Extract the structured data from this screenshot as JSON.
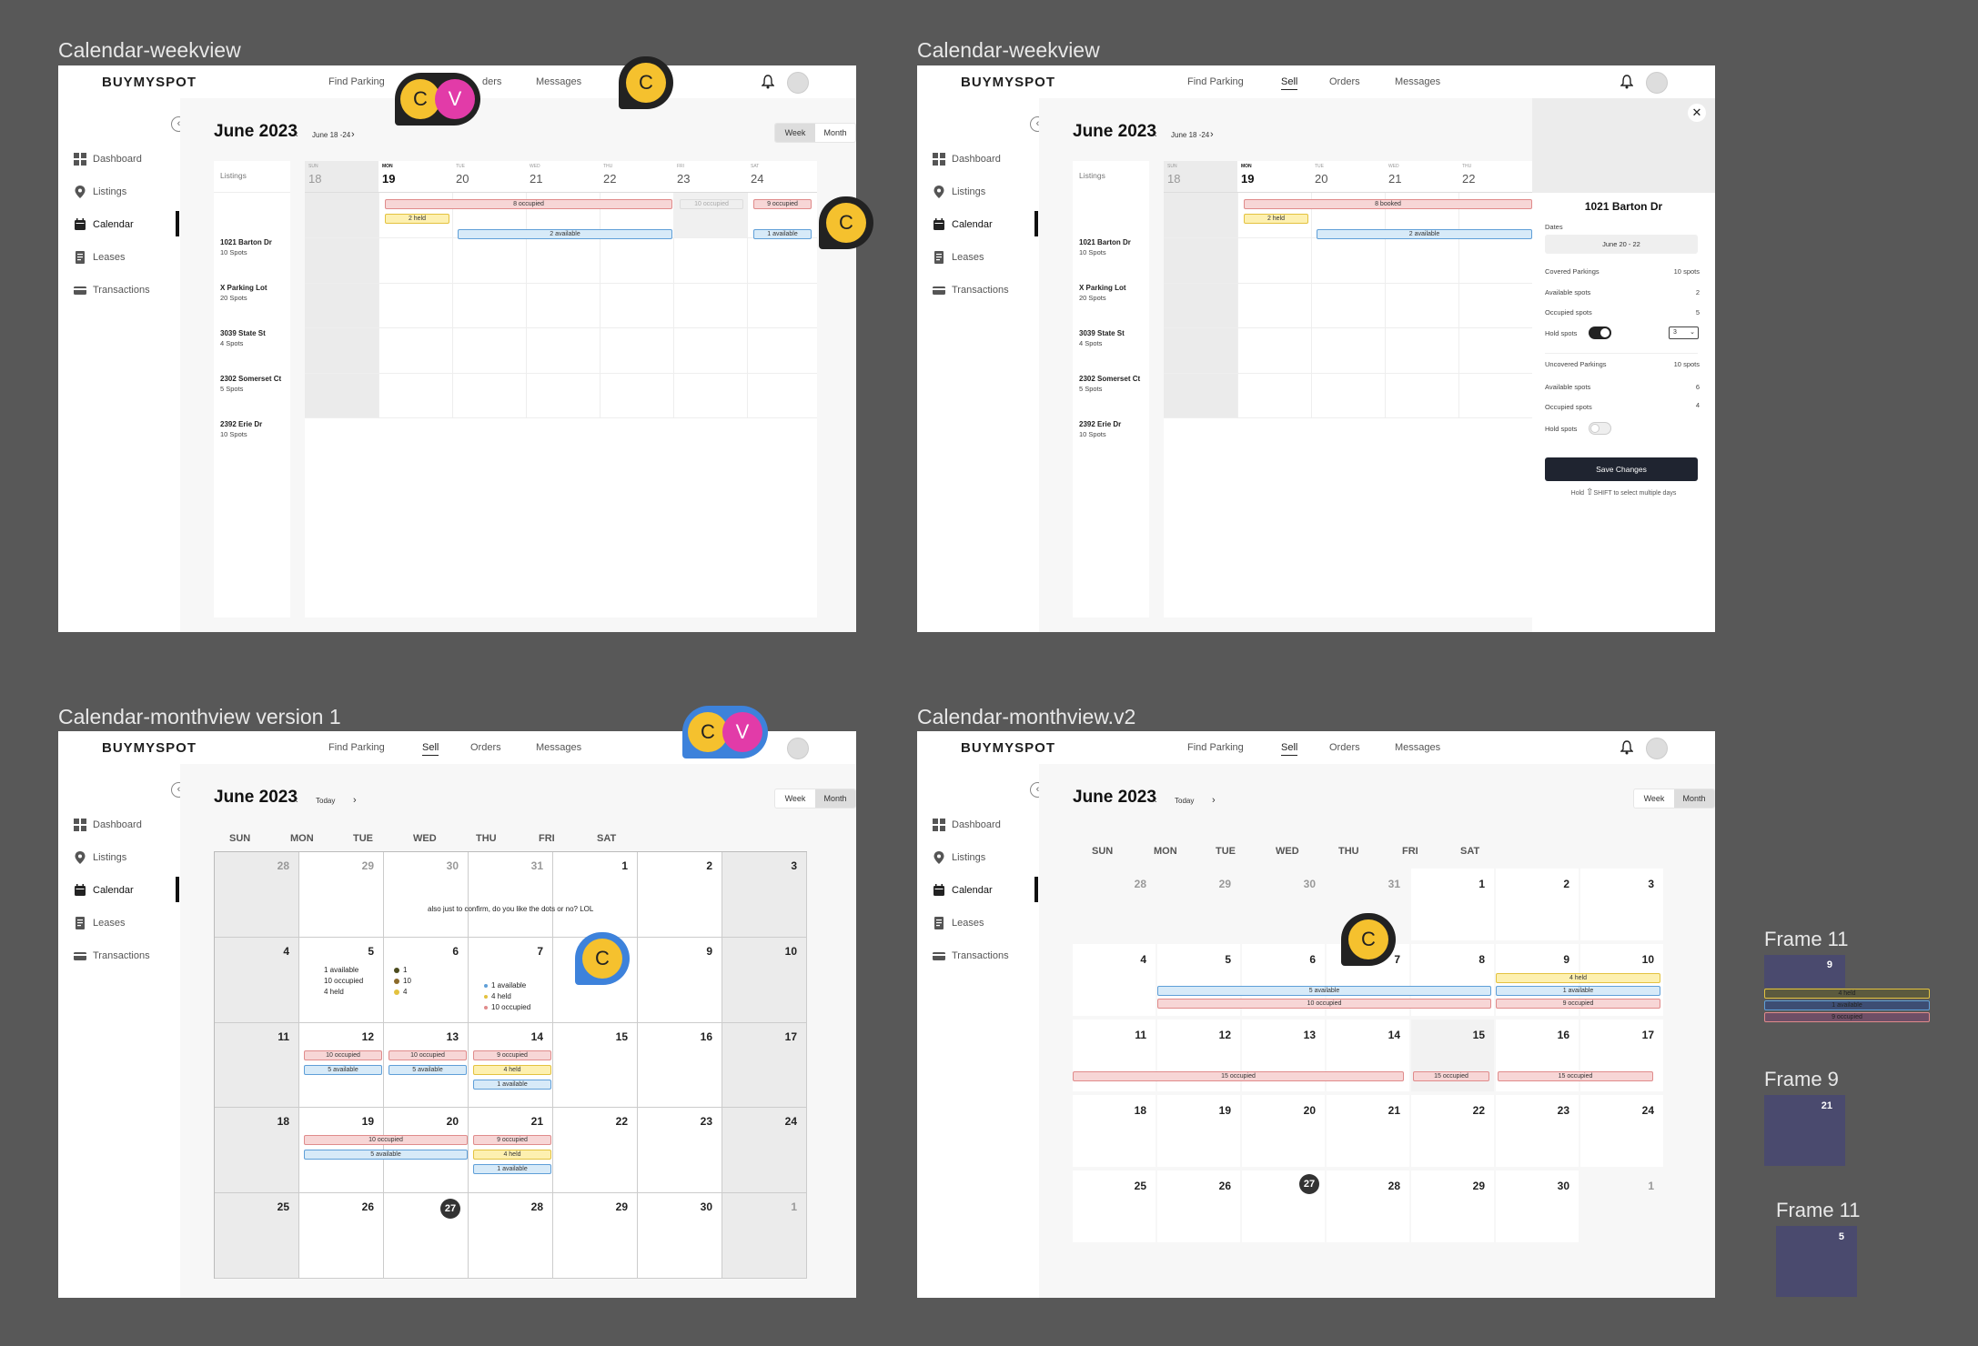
{
  "frames": {
    "f1_title": "Calendar-weekview",
    "f2_title": "Calendar-weekview",
    "f3_title": "Calendar-monthview version 1",
    "f4_title": "Calendar-monthview.v2"
  },
  "nav": {
    "logo": "BUYMYSPOT",
    "find_parking": "Find Parking",
    "sell": "Sell",
    "orders": "Orders",
    "orders_partial": "ders",
    "messages": "Messages"
  },
  "sidebar": {
    "items": [
      {
        "label": "Dashboard",
        "icon": "grid-icon"
      },
      {
        "label": "Listings",
        "icon": "pin-icon"
      },
      {
        "label": "Calendar",
        "icon": "calendar-icon"
      },
      {
        "label": "Leases",
        "icon": "document-icon"
      },
      {
        "label": "Transactions",
        "icon": "card-icon"
      }
    ]
  },
  "week": {
    "month_title": "June 2023",
    "range": "June 18 -24",
    "week_btn": "Week",
    "month_btn": "Month",
    "listings_header": "Listings",
    "days": [
      {
        "dow": "SUN",
        "num": "18"
      },
      {
        "dow": "MON",
        "num": "19"
      },
      {
        "dow": "TUE",
        "num": "20"
      },
      {
        "dow": "WED",
        "num": "21"
      },
      {
        "dow": "THU",
        "num": "22"
      },
      {
        "dow": "FRI",
        "num": "23"
      },
      {
        "dow": "SAT",
        "num": "24"
      }
    ],
    "listings": [
      {
        "name": "1021 Barton Dr",
        "spots": "10 Spots"
      },
      {
        "name": "X Parking Lot",
        "spots": "20 Spots"
      },
      {
        "name": "3039 State St",
        "spots": "4 Spots"
      },
      {
        "name": "2302 Somerset Ct",
        "spots": "5 Spots"
      },
      {
        "name": "2392 Erie Dr",
        "spots": "10 Spots"
      }
    ],
    "events": {
      "occupied_8": "8 occupied",
      "held_2": "2 held",
      "available_2": "2 available",
      "occupied_10": "10 occupied",
      "occupied_9": "9 occupied",
      "available_1": "1 available",
      "booked_8": "8 booked"
    }
  },
  "panel": {
    "title": "1021 Barton Dr",
    "dates_label": "Dates",
    "dates_value": "June 20 - 22",
    "covered_label": "Covered Parkings",
    "covered_value": "10 spots",
    "avail_label": "Available spots",
    "avail_value": "2",
    "occ_label": "Occupied spots",
    "occ_value": "5",
    "hold_label": "Hold spots",
    "hold_select": "3",
    "uncovered_label": "Uncovered Parkings",
    "uncovered_value": "10 spots",
    "avail2_value": "6",
    "occ2_value": "4",
    "save": "Save Changes",
    "hint_hold": "Hold",
    "hint_shift": "SHIFT",
    "hint_rest": "to select multiple days"
  },
  "month": {
    "title": "June 2023",
    "today_btn": "Today",
    "dows": [
      "SUN",
      "MON",
      "TUE",
      "WED",
      "THU",
      "FRI",
      "SAT"
    ],
    "comment": "also just to confirm, do you like the dots or no? LOL",
    "c5": [
      "1 available",
      "10 occupied",
      "4 held"
    ],
    "c6": [
      "1",
      "10",
      "4"
    ],
    "c7": [
      "1 available",
      "4 held",
      "10 occupied"
    ],
    "occupied_10": "10 occupied",
    "available_5": "5 available",
    "occupied_9": "9 occupied",
    "held_4": "4 held",
    "available_1": "1 available",
    "occupied_15": "15 occupied",
    "weeks": [
      [
        "28",
        "29",
        "30",
        "31",
        "1",
        "2",
        "3"
      ],
      [
        "4",
        "5",
        "6",
        "7",
        "8",
        "9",
        "10"
      ],
      [
        "11",
        "12",
        "13",
        "14",
        "15",
        "16",
        "17"
      ],
      [
        "18",
        "19",
        "20",
        "21",
        "22",
        "23",
        "24"
      ],
      [
        "25",
        "26",
        "27",
        "28",
        "29",
        "30",
        "1"
      ]
    ]
  },
  "cursors": {
    "c": "C",
    "v": "V"
  },
  "side_frames": [
    {
      "title": "Frame 11",
      "num": "9",
      "e1": "4 held",
      "e2": "1 available",
      "e3": "9 occupied"
    },
    {
      "title": "Frame 9",
      "num": "21"
    },
    {
      "title": "Frame 11",
      "num": "5"
    }
  ],
  "colors": {
    "occupied": "#f7d6d6",
    "available": "#d7eaf8",
    "held": "#fdf0b0",
    "cursor_c": "#f5c12e",
    "cursor_v": "#e23ba8"
  }
}
